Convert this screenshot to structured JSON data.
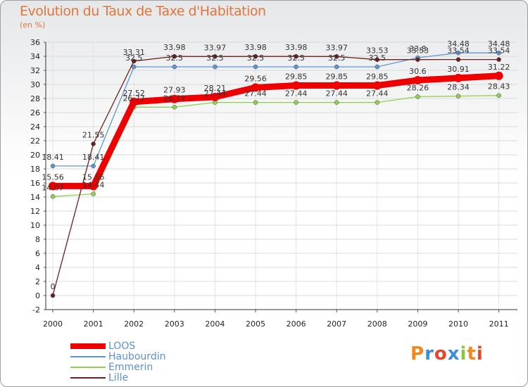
{
  "chart_data": {
    "type": "line",
    "title": "Evolution du Taux de Taxe d'Habitation",
    "subtitle": "(en %)",
    "categories": [
      "2000",
      "2001",
      "2002",
      "2003",
      "2004",
      "2005",
      "2006",
      "2007",
      "2008",
      "2009",
      "2010",
      "2011"
    ],
    "ylim": [
      -2,
      36
    ],
    "yticks": [
      -2,
      0,
      2,
      4,
      6,
      8,
      10,
      12,
      14,
      16,
      18,
      20,
      22,
      24,
      26,
      28,
      30,
      32,
      34,
      36
    ],
    "series": [
      {
        "name": "LOOS",
        "color": "#ee0000",
        "values": [
          15.56,
          15.56,
          27.52,
          27.93,
          28.21,
          29.56,
          29.85,
          29.85,
          29.85,
          30.6,
          30.91,
          31.22
        ],
        "labels": [
          "15.56",
          "15.56",
          "27.52",
          "27.93",
          "28.21",
          "29.56",
          "29.85",
          "29.85",
          "29.85",
          "30.6",
          "30.91",
          "31.22"
        ]
      },
      {
        "name": "Haubourdin",
        "color": "#5d97d3",
        "values": [
          18.41,
          18.41,
          32.5,
          32.5,
          32.5,
          32.5,
          32.5,
          32.5,
          32.5,
          33.8,
          34.48,
          34.48
        ],
        "labels": [
          "18.41",
          "18.41",
          "32.5",
          "32.5",
          "32.5",
          "32.5",
          "32.5",
          "32.5",
          "32.5",
          "33.8",
          "34.48",
          "34.48"
        ]
      },
      {
        "name": "Emmerin",
        "color": "#8fd14f",
        "values": [
          14.07,
          14.44,
          26.77,
          26.77,
          27.44,
          27.44,
          27.44,
          27.44,
          27.44,
          28.26,
          28.34,
          28.43
        ],
        "labels": [
          "14.07",
          "14.44",
          "26.77",
          "26.77",
          "27.44",
          "27.44",
          "27.44",
          "27.44",
          "27.44",
          "28.26",
          "28.34",
          "28.43"
        ]
      },
      {
        "name": "Lille",
        "color": "#6b1f1f",
        "values": [
          0,
          21.55,
          33.31,
          33.98,
          33.97,
          33.98,
          33.98,
          33.97,
          33.53,
          33.53,
          33.54,
          33.54
        ],
        "labels": [
          "0",
          "21.55",
          "33.31",
          "33.98",
          "33.97",
          "33.98",
          "33.98",
          "33.97",
          "33.53",
          "33.53",
          "33.54",
          "33.54"
        ]
      }
    ]
  },
  "logo": {
    "text": "Proxiti",
    "letters": [
      "P",
      "r",
      "o",
      "x",
      "i",
      "t",
      "i"
    ]
  }
}
